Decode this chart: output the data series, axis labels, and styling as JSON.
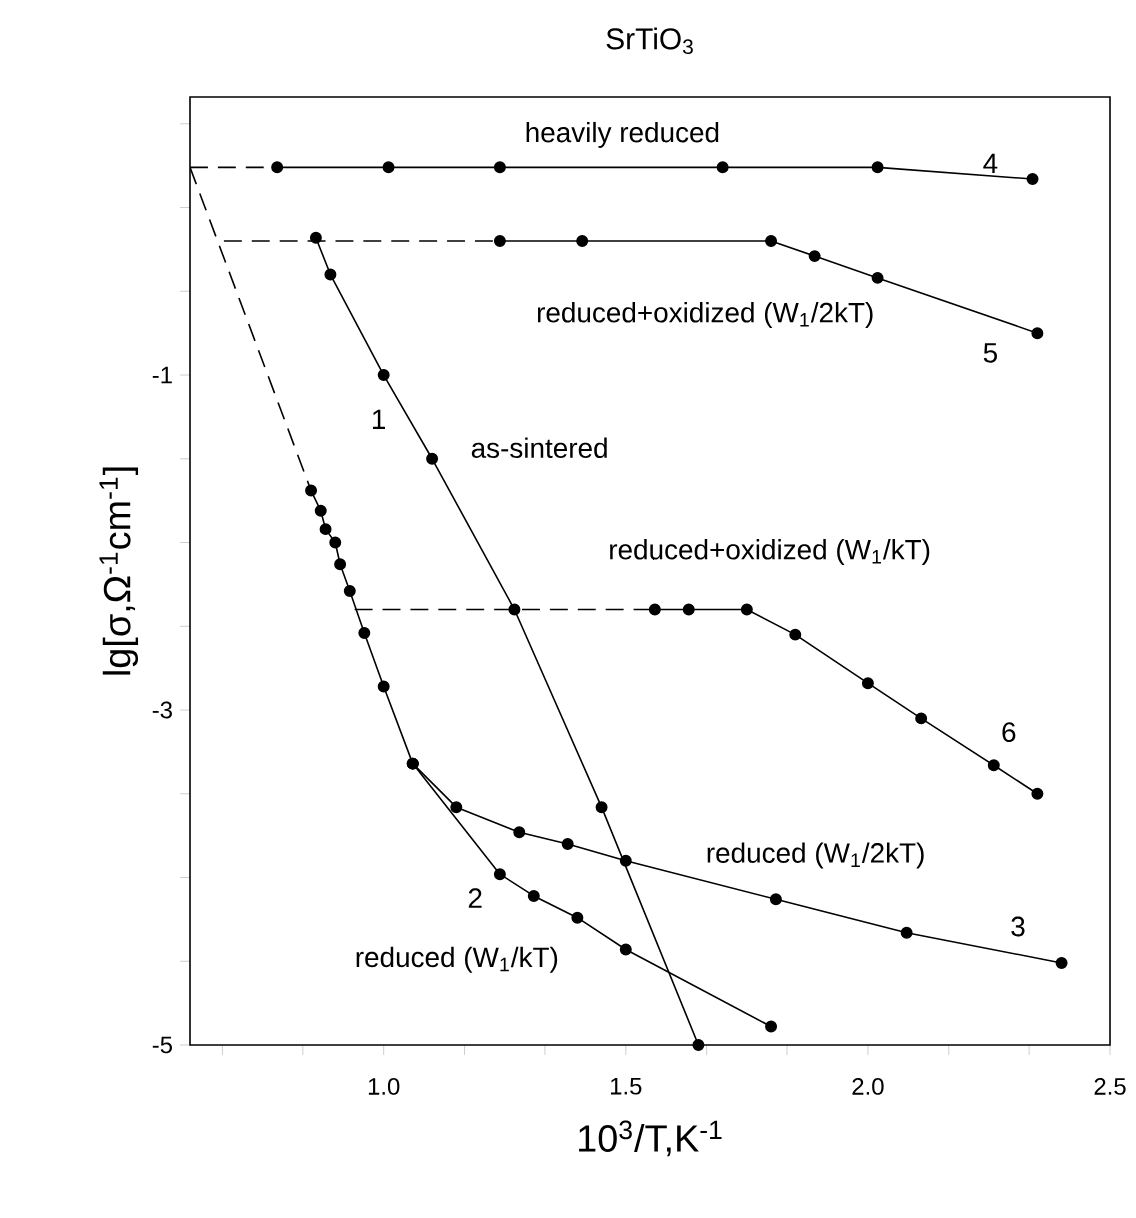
{
  "chart_data": {
    "type": "line",
    "title": "SrTiO$_{3}$",
    "xlabel": "10$^{3}$/T,K$^{-1}$",
    "ylabel": "lg[σ,Ω$^{-1}$cm$^{-1}$]",
    "xlim": [
      0.6,
      2.5
    ],
    "ylim": [
      -5,
      0.66
    ],
    "xticks": [
      {
        "value": 0.667,
        "label": null
      },
      {
        "value": 0.833,
        "label": null
      },
      {
        "value": 1.0,
        "label": "1.0"
      },
      {
        "value": 1.167,
        "label": null
      },
      {
        "value": 1.333,
        "label": null
      },
      {
        "value": 1.5,
        "label": "1.5"
      },
      {
        "value": 1.667,
        "label": null
      },
      {
        "value": 1.833,
        "label": null
      },
      {
        "value": 2.0,
        "label": "2.0"
      },
      {
        "value": 2.167,
        "label": null
      },
      {
        "value": 2.333,
        "label": null
      },
      {
        "value": 2.5,
        "label": "2.5"
      }
    ],
    "yticks": [
      -5,
      {
        "value": -4.5,
        "label": null
      },
      {
        "value": -4,
        "label": null
      },
      {
        "value": -3.5,
        "label": null
      },
      -3,
      {
        "value": -2.5,
        "label": null
      },
      {
        "value": -2,
        "label": null
      },
      {
        "value": -1.5,
        "label": null
      },
      -1,
      {
        "value": -0.5,
        "label": null
      },
      {
        "value": 0,
        "label": null
      },
      {
        "value": 0.5,
        "label": null
      }
    ],
    "grid": false,
    "series": [
      {
        "color": "#000000",
        "line_style": "dashed",
        "x": [
          0.6,
          0.78
        ],
        "values": [
          0.24,
          0.24
        ]
      },
      {
        "color": "#000000",
        "marker": "circle",
        "x": [
          0.78,
          1.01,
          1.24,
          1.7,
          2.02,
          2.34
        ],
        "values": [
          0.24,
          0.24,
          0.24,
          0.24,
          0.24,
          0.17
        ]
      },
      {
        "color": "#000000",
        "line_style": "dashed",
        "x": [
          0.67,
          1.24
        ],
        "values": [
          -0.2,
          -0.2
        ]
      },
      {
        "color": "#000000",
        "marker": "circle",
        "x": [
          1.24,
          1.41,
          1.8,
          1.89,
          2.02,
          2.35
        ],
        "values": [
          -0.2,
          -0.2,
          -0.2,
          -0.29,
          -0.42,
          -0.75
        ]
      },
      {
        "color": "#000000",
        "marker": "circle",
        "x": [
          0.86,
          0.89,
          1.0,
          1.1,
          1.27,
          1.45,
          1.65
        ],
        "values": [
          -0.18,
          -0.4,
          -1.0,
          -1.5,
          -2.4,
          -3.58,
          -5.0
        ]
      },
      {
        "color": "#000000",
        "line_style": "dashed",
        "x": [
          0.6,
          0.85
        ],
        "values": [
          0.24,
          -1.69
        ]
      },
      {
        "color": "#000000",
        "marker": "circle",
        "x": [
          0.85,
          0.87,
          0.88,
          0.9,
          0.91,
          0.93,
          0.96,
          1.0,
          1.06
        ],
        "values": [
          -1.69,
          -1.81,
          -1.92,
          -2.0,
          -2.13,
          -2.29,
          -2.54,
          -2.86,
          -3.32
        ]
      },
      {
        "color": "#000000",
        "marker": "circle",
        "x": [
          1.06,
          1.15,
          1.28,
          1.38,
          1.5,
          1.81,
          2.08,
          2.4
        ],
        "values": [
          -3.32,
          -3.58,
          -3.73,
          -3.8,
          -3.9,
          -4.13,
          -4.33,
          -4.51
        ]
      },
      {
        "color": "#000000",
        "marker": "circle",
        "x": [
          1.06,
          1.24,
          1.31,
          1.4,
          1.5,
          1.8
        ],
        "values": [
          -3.32,
          -3.98,
          -4.11,
          -4.24,
          -4.43,
          -4.89
        ]
      },
      {
        "color": "#000000",
        "line_style": "dashed",
        "x": [
          0.94,
          1.56
        ],
        "values": [
          -2.4,
          -2.4
        ]
      },
      {
        "color": "#000000",
        "marker": "circle",
        "x": [
          1.56,
          1.63,
          1.75,
          1.85,
          2.0,
          2.11,
          2.26,
          2.35
        ],
        "values": [
          -2.4,
          -2.4,
          -2.4,
          -2.55,
          -2.84,
          -3.05,
          -3.33,
          -3.5
        ]
      }
    ],
    "annotations": [
      "heavily reduced",
      "4",
      "reduced+oxidized (W$_{1}$/2kT)",
      "5",
      "1",
      "as-sintered",
      "reduced+oxidized (W$_{1}$/kT)",
      "6",
      "reduced (W$_{1}$/2kT)",
      "3",
      "2",
      "reduced (W$_{1}$/kT)"
    ]
  }
}
